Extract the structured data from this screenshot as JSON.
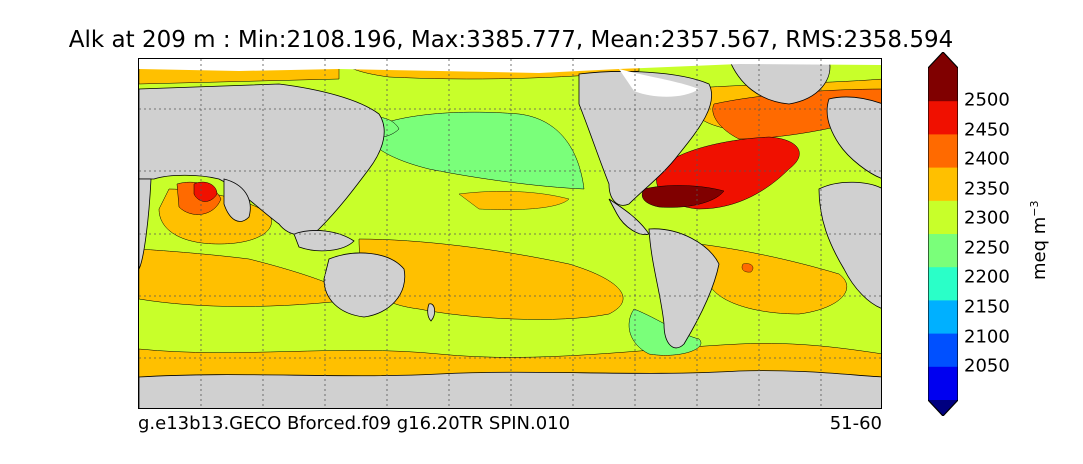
{
  "title": "Alk at 209 m : Min:2108.196, Max:3385.777, Mean:2357.567, RMS:2358.594",
  "caption_left": "g.e13b13.GECO Bforced.f09 g16.20TR SPIN.010",
  "caption_right": "51-60",
  "colorbar": {
    "unit_base": "meq m",
    "unit_exponent": "−3",
    "ticks": [
      "2500",
      "2450",
      "2400",
      "2350",
      "2300",
      "2250",
      "2200",
      "2150",
      "2100",
      "2050"
    ],
    "colors_top_to_bottom": [
      "#800000",
      "#f01000",
      "#ff6a00",
      "#ffc000",
      "#c8ff2a",
      "#7aff7a",
      "#2affc8",
      "#00b0ff",
      "#0050ff",
      "#0000f0",
      "#000080"
    ]
  },
  "map_colors": {
    "land": "#d0d0d0",
    "missing": "#ffffff",
    "c2250": "#7aff7a",
    "c2200": "#2affc8",
    "c2300": "#c8ff2a",
    "c2350": "#ffc000",
    "c2400": "#ff6a00",
    "c2450": "#f01000",
    "c2500": "#800000"
  }
}
